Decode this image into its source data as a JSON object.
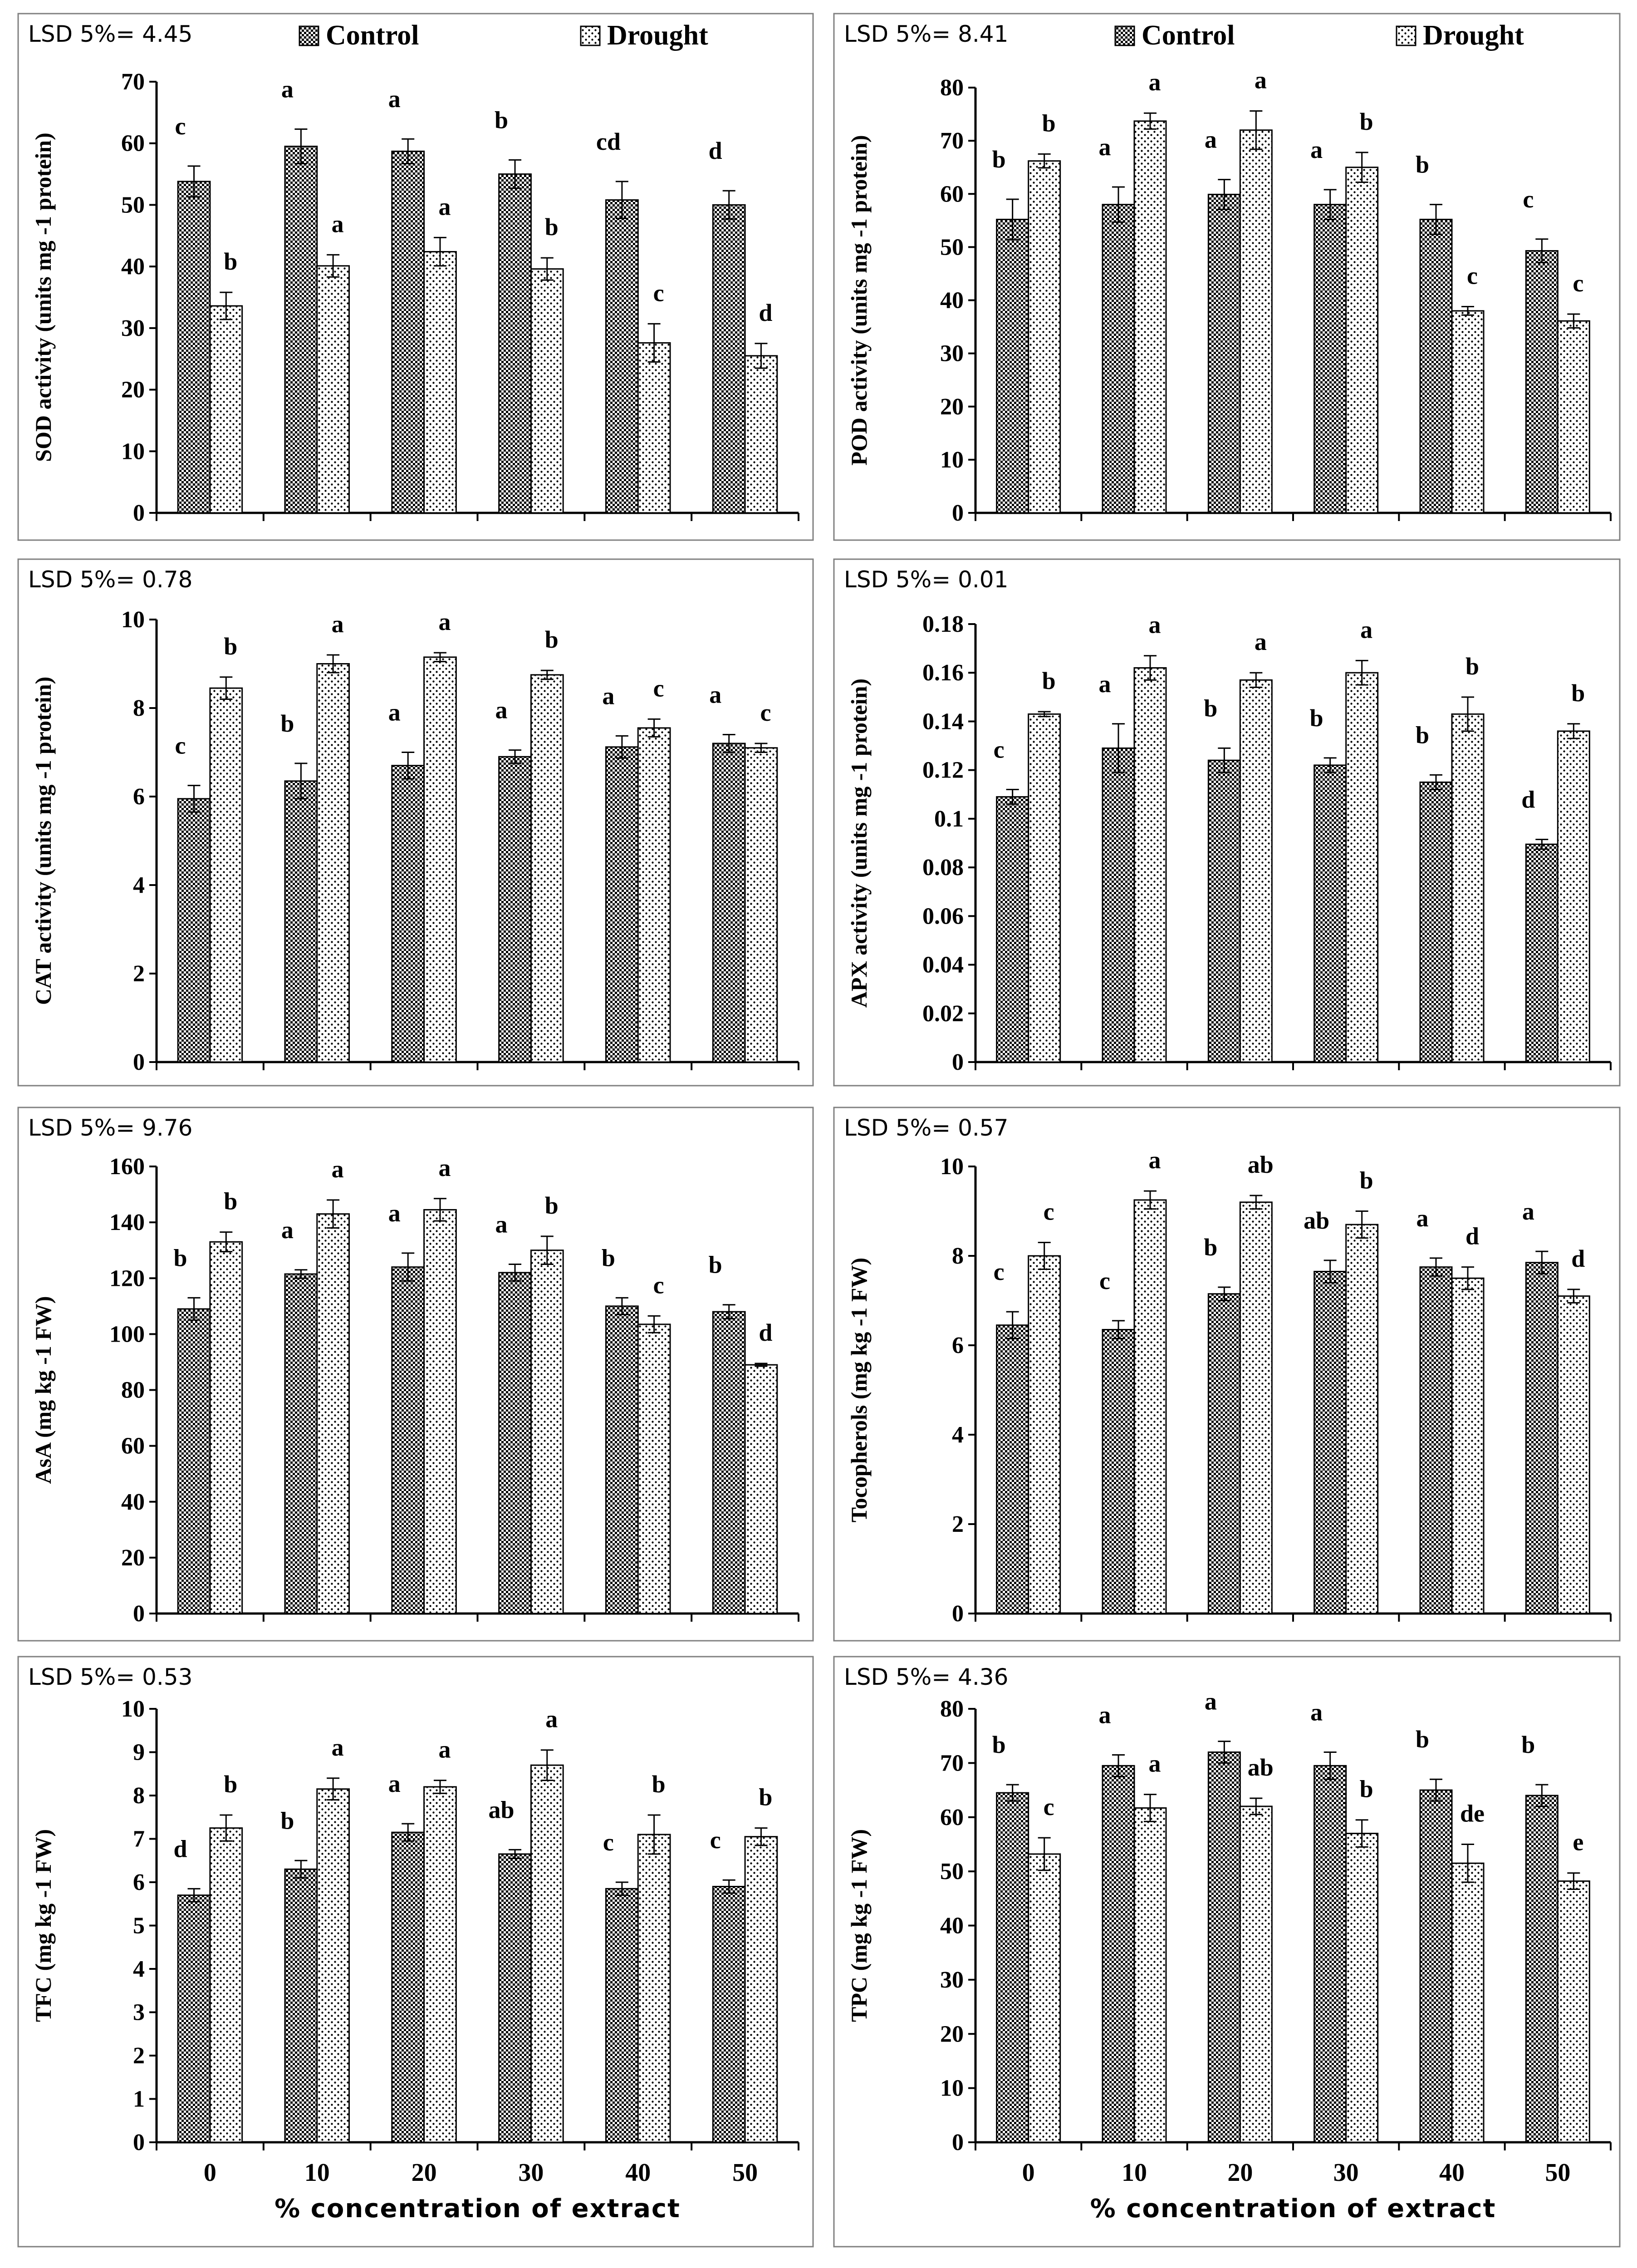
{
  "x_axis_label": "% concentration of extract",
  "legend": {
    "control": "Control",
    "drought": "Drought"
  },
  "chart_data": [
    {
      "type": "bar",
      "id": "sod",
      "lsd": "LSD 5%= 4.45",
      "ylabel": "SOD activity (units mg  -1 protein)",
      "ylim": [
        0,
        70
      ],
      "ystep": 10,
      "yticks": [
        "0",
        "10",
        "20",
        "30",
        "40",
        "50",
        "60",
        "70"
      ],
      "categories": [
        "0",
        "10",
        "20",
        "30",
        "40",
        "50"
      ],
      "show_legend": true,
      "show_xlabels": false,
      "series": [
        {
          "name": "Control",
          "values": [
            53.8,
            59.5,
            58.7,
            55.0,
            50.8,
            50.0
          ],
          "errors": [
            2.5,
            2.8,
            2.0,
            2.3,
            3.0,
            2.3
          ],
          "letters": [
            "c",
            "a",
            "a",
            "b",
            "cd",
            "d"
          ]
        },
        {
          "name": "Drought",
          "values": [
            33.6,
            40.1,
            42.4,
            39.6,
            27.6,
            25.5
          ],
          "errors": [
            2.2,
            1.8,
            2.3,
            1.8,
            3.1,
            2.0
          ],
          "letters": [
            "b",
            "a",
            "a",
            "b",
            "c",
            "d"
          ]
        }
      ]
    },
    {
      "type": "bar",
      "id": "pod",
      "lsd": "LSD 5%= 8.41",
      "ylabel": "POD activity (units mg  -1 protein)",
      "ylim": [
        0,
        80
      ],
      "ystep": 10,
      "yticks": [
        "0",
        "10",
        "20",
        "30",
        "40",
        "50",
        "60",
        "70",
        "80"
      ],
      "categories": [
        "0",
        "10",
        "20",
        "30",
        "40",
        "50"
      ],
      "show_legend": true,
      "show_xlabels": false,
      "series": [
        {
          "name": "Control",
          "values": [
            55.2,
            58.0,
            59.9,
            58.0,
            55.2,
            49.3
          ],
          "errors": [
            3.8,
            3.3,
            2.8,
            2.8,
            2.8,
            2.2
          ],
          "letters": [
            "b",
            "a",
            "a",
            "a",
            "b",
            "c"
          ]
        },
        {
          "name": "Drought",
          "values": [
            66.2,
            73.7,
            72.0,
            65.0,
            38.0,
            36.1
          ],
          "errors": [
            1.3,
            1.5,
            3.6,
            2.8,
            0.8,
            1.3
          ],
          "letters": [
            "b",
            "a",
            "a",
            "b",
            "c",
            "c"
          ]
        }
      ]
    },
    {
      "type": "bar",
      "id": "cat",
      "lsd": "LSD 5%= 0.78",
      "ylabel": "CAT activity (units mg  -1 protein)",
      "ylim": [
        0,
        10
      ],
      "ystep": 2,
      "yticks": [
        "0",
        "2",
        "4",
        "6",
        "8",
        "10"
      ],
      "categories": [
        "0",
        "10",
        "20",
        "30",
        "40",
        "50"
      ],
      "show_legend": false,
      "show_xlabels": false,
      "series": [
        {
          "name": "Control",
          "values": [
            5.95,
            6.35,
            6.7,
            6.9,
            7.12,
            7.2
          ],
          "errors": [
            0.3,
            0.4,
            0.3,
            0.15,
            0.25,
            0.2
          ],
          "letters": [
            "c",
            "b",
            "a",
            "a",
            "a",
            "a"
          ]
        },
        {
          "name": "Drought",
          "values": [
            8.45,
            9.0,
            9.15,
            8.75,
            7.55,
            7.1
          ],
          "errors": [
            0.25,
            0.2,
            0.1,
            0.1,
            0.2,
            0.1
          ],
          "letters": [
            "b",
            "a",
            "a",
            "b",
            "c",
            "c"
          ]
        }
      ]
    },
    {
      "type": "bar",
      "id": "apx",
      "lsd": "LSD 5%= 0.01",
      "ylabel": "APX activity (units mg  -1 protein)",
      "ylim": [
        0,
        0.18
      ],
      "ystep": 0.02,
      "yticks": [
        "0",
        "0.02",
        "0.04",
        "0.06",
        "0.08",
        "0.1",
        "0.12",
        "0.14",
        "0.16",
        "0.18"
      ],
      "categories": [
        "0",
        "10",
        "20",
        "30",
        "40",
        "50"
      ],
      "show_legend": false,
      "show_xlabels": false,
      "series": [
        {
          "name": "Control",
          "values": [
            0.109,
            0.129,
            0.124,
            0.122,
            0.115,
            0.0895
          ],
          "errors": [
            0.003,
            0.01,
            0.005,
            0.003,
            0.003,
            0.002
          ],
          "letters": [
            "c",
            "a",
            "b",
            "b",
            "b",
            "d"
          ]
        },
        {
          "name": "Drought",
          "values": [
            0.143,
            0.162,
            0.157,
            0.16,
            0.143,
            0.136
          ],
          "errors": [
            0.001,
            0.005,
            0.003,
            0.005,
            0.007,
            0.003
          ],
          "letters": [
            "b",
            "a",
            "a",
            "a",
            "b",
            "b"
          ]
        }
      ]
    },
    {
      "type": "bar",
      "id": "asa",
      "lsd": "LSD 5%= 9.76",
      "ylabel": "AsA (mg kg -1 FW)",
      "ylim": [
        0,
        160
      ],
      "ystep": 20,
      "yticks": [
        "0",
        "20",
        "40",
        "60",
        "80",
        "100",
        "120",
        "140",
        "160"
      ],
      "categories": [
        "0",
        "10",
        "20",
        "30",
        "40",
        "50"
      ],
      "show_legend": false,
      "show_xlabels": false,
      "series": [
        {
          "name": "Control",
          "values": [
            109,
            121.5,
            124,
            122,
            110,
            108
          ],
          "errors": [
            4,
            1.5,
            5,
            3,
            3,
            2.5
          ],
          "letters": [
            "b",
            "a",
            "a",
            "a",
            "b",
            "b"
          ]
        },
        {
          "name": "Drought",
          "values": [
            133,
            143,
            144.5,
            130,
            103.5,
            89
          ],
          "errors": [
            3.5,
            5,
            4,
            5,
            3,
            0.5
          ],
          "letters": [
            "b",
            "a",
            "a",
            "b",
            "c",
            "d"
          ]
        }
      ]
    },
    {
      "type": "bar",
      "id": "toc",
      "lsd": "LSD 5%= 0.57",
      "ylabel": "Tocopherols (mg kg -1 FW)",
      "ylim": [
        0,
        10
      ],
      "ystep": 2,
      "yticks": [
        "0",
        "2",
        "4",
        "6",
        "8",
        "10"
      ],
      "categories": [
        "0",
        "10",
        "20",
        "30",
        "40",
        "50"
      ],
      "show_legend": false,
      "show_xlabels": false,
      "series": [
        {
          "name": "Control",
          "values": [
            6.45,
            6.35,
            7.15,
            7.65,
            7.75,
            7.85
          ],
          "errors": [
            0.3,
            0.2,
            0.15,
            0.25,
            0.2,
            0.25
          ],
          "letters": [
            "c",
            "c",
            "b",
            "ab",
            "a",
            "a"
          ]
        },
        {
          "name": "Drought",
          "values": [
            8.0,
            9.25,
            9.2,
            8.7,
            7.5,
            7.1
          ],
          "errors": [
            0.3,
            0.2,
            0.15,
            0.3,
            0.25,
            0.15
          ],
          "letters": [
            "c",
            "a",
            "ab",
            "b",
            "d",
            "d"
          ]
        }
      ]
    },
    {
      "type": "bar",
      "id": "tfc",
      "lsd": "LSD 5%= 0.53",
      "ylabel": "TFC (mg kg -1 FW)",
      "ylim": [
        0,
        10
      ],
      "ystep": 1,
      "yticks": [
        "0",
        "1",
        "2",
        "3",
        "4",
        "5",
        "6",
        "7",
        "8",
        "9",
        "10"
      ],
      "categories": [
        "0",
        "10",
        "20",
        "30",
        "40",
        "50"
      ],
      "show_legend": false,
      "show_xlabels": true,
      "series": [
        {
          "name": "Control",
          "values": [
            5.7,
            6.3,
            7.15,
            6.65,
            5.85,
            5.9
          ],
          "errors": [
            0.15,
            0.2,
            0.2,
            0.1,
            0.15,
            0.15
          ],
          "letters": [
            "d",
            "b",
            "a",
            "ab",
            "c",
            "c"
          ]
        },
        {
          "name": "Drought",
          "values": [
            7.25,
            8.15,
            8.2,
            8.7,
            7.1,
            7.05
          ],
          "errors": [
            0.3,
            0.25,
            0.15,
            0.35,
            0.45,
            0.2
          ],
          "letters": [
            "b",
            "a",
            "a",
            "a",
            "b",
            "b"
          ]
        }
      ]
    },
    {
      "type": "bar",
      "id": "tpc",
      "lsd": "LSD 5%= 4.36",
      "ylabel": "TPC (mg kg -1 FW)",
      "ylim": [
        0,
        80
      ],
      "ystep": 10,
      "yticks": [
        "0",
        "10",
        "20",
        "30",
        "40",
        "50",
        "60",
        "70",
        "80"
      ],
      "categories": [
        "0",
        "10",
        "20",
        "30",
        "40",
        "50"
      ],
      "show_legend": false,
      "show_xlabels": true,
      "series": [
        {
          "name": "Control",
          "values": [
            64.5,
            69.5,
            72,
            69.5,
            65,
            64
          ],
          "errors": [
            1.5,
            2,
            2,
            2.5,
            2,
            2
          ],
          "letters": [
            "b",
            "a",
            "a",
            "a",
            "b",
            "b"
          ]
        },
        {
          "name": "Drought",
          "values": [
            53.2,
            61.7,
            62,
            57,
            51.5,
            48.2
          ],
          "errors": [
            3,
            2.5,
            1.5,
            2.5,
            3.5,
            1.5
          ],
          "letters": [
            "c",
            "a",
            "ab",
            "b",
            "de",
            "e"
          ]
        }
      ]
    }
  ]
}
